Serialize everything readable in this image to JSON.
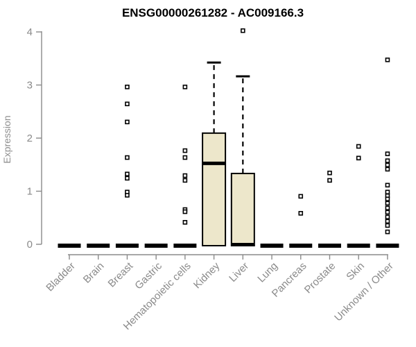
{
  "chart_data": {
    "type": "boxplot",
    "title": "ENSG00000261282 - AC009166.3",
    "ylabel": "Expression",
    "xlabel": "",
    "ylim": [
      0,
      4
    ],
    "yticks": [
      0,
      1,
      2,
      3,
      4
    ],
    "grid": false,
    "legend": "none",
    "box_fill": "#ede7cb",
    "box_stroke": "#000000",
    "axis_color": "#8a8a8a",
    "label_color": "#8a8a8a",
    "title_color": "#000000",
    "categories": [
      "Bladder",
      "Brain",
      "Breast",
      "Gastric",
      "Hematopoietic cells",
      "Kidney",
      "Liver",
      "Lung",
      "Pancreas",
      "Prostate",
      "Skin",
      "Unknown / Other"
    ],
    "boxes": [
      {
        "category": "Bladder",
        "q1": 0,
        "median": 0,
        "q3": 0,
        "whisker_low": 0,
        "whisker_high": 0,
        "outliers": []
      },
      {
        "category": "Brain",
        "q1": 0,
        "median": 0,
        "q3": 0,
        "whisker_low": 0,
        "whisker_high": 0,
        "outliers": []
      },
      {
        "category": "Breast",
        "q1": 0,
        "median": 0,
        "q3": 0,
        "whisker_low": 0,
        "whisker_high": 0,
        "outliers": [
          2.99,
          2.67,
          2.33,
          1.66,
          1.35,
          1.27,
          1.01,
          0.95
        ]
      },
      {
        "category": "Gastric",
        "q1": 0,
        "median": 0,
        "q3": 0,
        "whisker_low": 0,
        "whisker_high": 0,
        "outliers": []
      },
      {
        "category": "Hematopoietic cells",
        "q1": 0,
        "median": 0,
        "q3": 0,
        "whisker_low": 0,
        "whisker_high": 0,
        "outliers": [
          2.99,
          1.79,
          1.66,
          1.32,
          1.23,
          0.68,
          0.64,
          0.44
        ]
      },
      {
        "category": "Kidney",
        "q1": 0,
        "median": 1.55,
        "q3": 2.12,
        "whisker_low": 0,
        "whisker_high": 3.45,
        "outliers": []
      },
      {
        "category": "Liver",
        "q1": 0,
        "median": 0.02,
        "q3": 1.36,
        "whisker_low": 0,
        "whisker_high": 3.19,
        "outliers": [
          4.05
        ]
      },
      {
        "category": "Lung",
        "q1": 0,
        "median": 0,
        "q3": 0,
        "whisker_low": 0,
        "whisker_high": 0,
        "outliers": []
      },
      {
        "category": "Pancreas",
        "q1": 0,
        "median": 0,
        "q3": 0,
        "whisker_low": 0,
        "whisker_high": 0,
        "outliers": [
          0.93,
          0.61
        ]
      },
      {
        "category": "Prostate",
        "q1": 0,
        "median": 0,
        "q3": 0,
        "whisker_low": 0,
        "whisker_high": 0,
        "outliers": [
          1.37,
          1.23
        ]
      },
      {
        "category": "Skin",
        "q1": 0,
        "median": 0,
        "q3": 0,
        "whisker_low": 0,
        "whisker_high": 0,
        "outliers": [
          1.87,
          1.65
        ]
      },
      {
        "category": "Unknown / Other",
        "q1": 0,
        "median": 0,
        "q3": 0,
        "whisker_low": 0,
        "whisker_high": 0,
        "outliers": [
          3.5,
          1.73,
          1.6,
          1.52,
          1.44,
          1.14,
          1.01,
          0.94,
          0.88,
          0.8,
          0.71,
          0.63,
          0.54,
          0.46,
          0.38,
          0.26
        ]
      }
    ]
  }
}
